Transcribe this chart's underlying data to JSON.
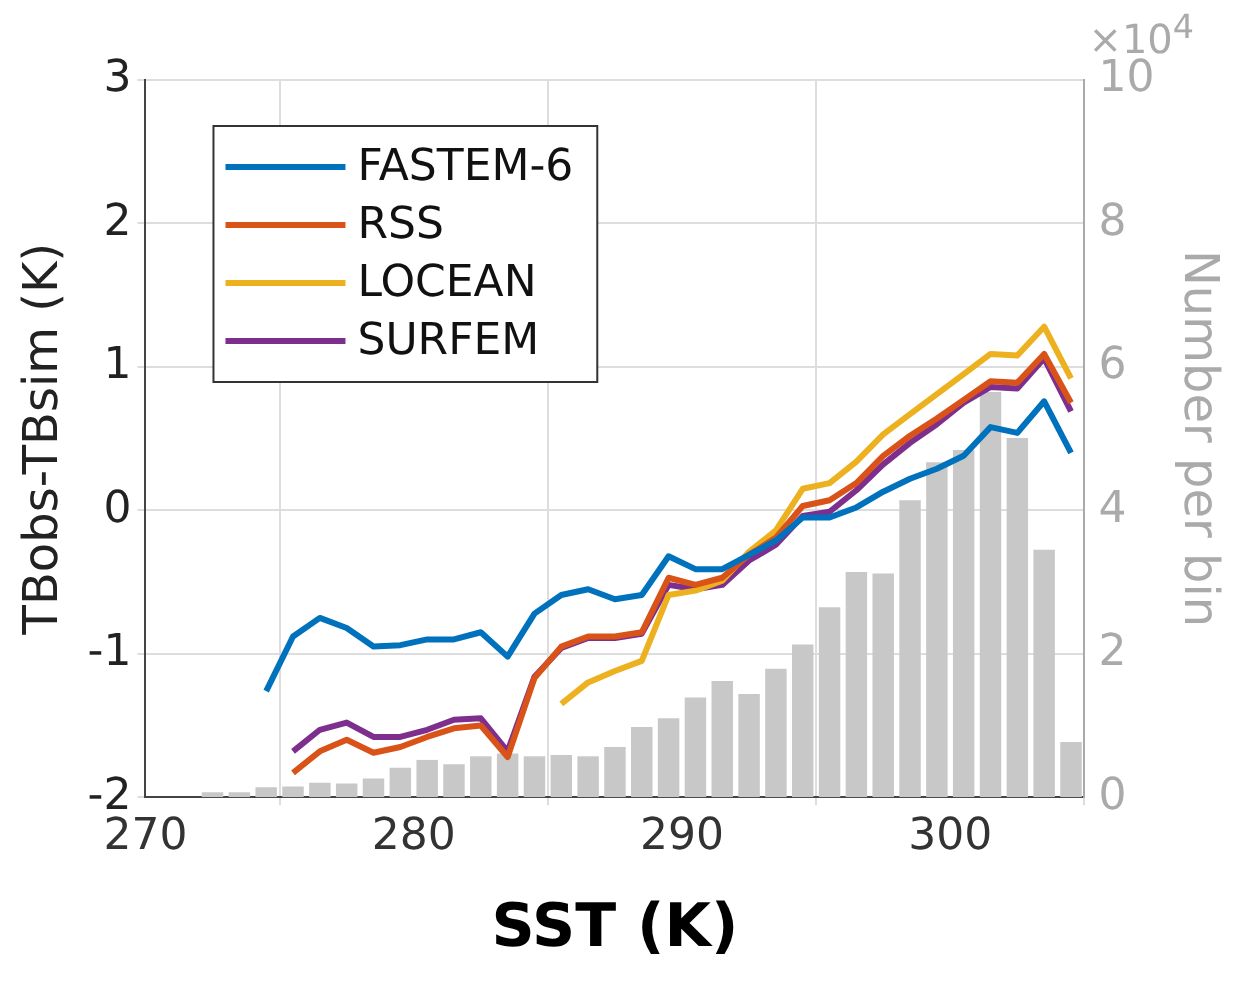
{
  "chart_data": {
    "type": "line",
    "xlabel": "SST (K)",
    "ylabel": "TBobs-TBsim (K)",
    "y2label": "Number per bin",
    "annotations": [
      "×10$^{4}$"
    ],
    "xlim": [
      270,
      305
    ],
    "xticks": [
      270,
      280,
      290,
      300
    ],
    "ylim": [
      -2,
      3
    ],
    "yticks": [
      -2,
      -1,
      0,
      1,
      2,
      3
    ],
    "y2lim": [
      0,
      10
    ],
    "y2ticks": [
      0,
      2,
      4,
      6,
      8,
      10
    ],
    "grid": true,
    "legend": "top left",
    "series": [
      {
        "type": "bar",
        "axis": "y2",
        "color": "#c8c8c8",
        "x": [
          272.5,
          273.5,
          274.5,
          275.5,
          276.5,
          277.5,
          278.5,
          279.5,
          280.5,
          281.5,
          282.5,
          283.5,
          284.5,
          285.5,
          286.5,
          287.5,
          288.5,
          289.5,
          290.5,
          291.5,
          292.5,
          293.5,
          294.5,
          295.5,
          296.5,
          297.5,
          298.5,
          299.5,
          300.5,
          301.5,
          302.5,
          303.5,
          304.5
        ],
        "values": [
          0.07,
          0.07,
          0.14,
          0.15,
          0.2,
          0.19,
          0.26,
          0.41,
          0.52,
          0.46,
          0.57,
          0.61,
          0.57,
          0.59,
          0.57,
          0.7,
          0.98,
          1.1,
          1.39,
          1.62,
          1.44,
          1.79,
          2.13,
          2.65,
          3.14,
          3.12,
          4.14,
          4.67,
          4.84,
          5.65,
          5.01,
          3.45,
          0.77
        ]
      },
      {
        "name": "FASTEM-6",
        "color": "#0072bd",
        "x": [
          274.5,
          275.5,
          276.5,
          277.5,
          278.5,
          279.5,
          280.5,
          281.5,
          282.5,
          283.5,
          284.5,
          285.5,
          286.5,
          287.5,
          288.5,
          289.5,
          290.5,
          291.5,
          292.5,
          293.5,
          294.5,
          295.5,
          296.5,
          297.5,
          298.5,
          299.5,
          300.5,
          301.5,
          302.5,
          303.5,
          304.5
        ],
        "values": [
          -1.26,
          -0.88,
          -0.75,
          -0.82,
          -0.95,
          -0.94,
          -0.9,
          -0.9,
          -0.85,
          -1.02,
          -0.72,
          -0.59,
          -0.55,
          -0.62,
          -0.59,
          -0.32,
          -0.41,
          -0.41,
          -0.31,
          -0.21,
          -0.05,
          -0.05,
          0.02,
          0.13,
          0.22,
          0.29,
          0.38,
          0.58,
          0.54,
          0.76,
          0.4
        ]
      },
      {
        "name": "RSS",
        "color": "#d95319",
        "x": [
          275.5,
          276.5,
          277.5,
          278.5,
          279.5,
          280.5,
          281.5,
          282.5,
          283.5,
          284.5,
          285.5,
          286.5,
          287.5,
          288.5,
          289.5,
          290.5,
          291.5,
          292.5,
          293.5,
          294.5,
          295.5,
          296.5,
          297.5,
          298.5,
          299.5,
          300.5,
          301.5,
          302.5,
          303.5,
          304.5
        ],
        "values": [
          -1.83,
          -1.68,
          -1.6,
          -1.69,
          -1.65,
          -1.58,
          -1.52,
          -1.5,
          -1.72,
          -1.17,
          -0.95,
          -0.88,
          -0.88,
          -0.85,
          -0.47,
          -0.52,
          -0.47,
          -0.31,
          -0.19,
          0.03,
          0.07,
          0.19,
          0.38,
          0.52,
          0.64,
          0.77,
          0.9,
          0.89,
          1.09,
          0.75
        ]
      },
      {
        "name": "LOCEAN",
        "color": "#edb120",
        "x": [
          285.5,
          286.5,
          287.5,
          288.5,
          289.5,
          290.5,
          291.5,
          292.5,
          293.5,
          294.5,
          295.5,
          296.5,
          297.5,
          298.5,
          299.5,
          300.5,
          301.5,
          302.5,
          303.5,
          304.5
        ],
        "values": [
          -1.35,
          -1.2,
          -1.12,
          -1.05,
          -0.59,
          -0.56,
          -0.49,
          -0.29,
          -0.14,
          0.15,
          0.19,
          0.34,
          0.53,
          0.67,
          0.81,
          0.95,
          1.09,
          1.08,
          1.28,
          0.92
        ]
      },
      {
        "name": "SURFEM",
        "color": "#7e2f8e",
        "x": [
          275.5,
          276.5,
          277.5,
          278.5,
          279.5,
          280.5,
          281.5,
          282.5,
          283.5,
          284.5,
          285.5,
          286.5,
          287.5,
          288.5,
          289.5,
          290.5,
          291.5,
          292.5,
          293.5,
          294.5,
          295.5,
          296.5,
          297.5,
          298.5,
          299.5,
          300.5,
          301.5,
          302.5,
          303.5,
          304.5
        ],
        "values": [
          -1.68,
          -1.53,
          -1.48,
          -1.58,
          -1.58,
          -1.53,
          -1.46,
          -1.45,
          -1.68,
          -1.16,
          -0.96,
          -0.89,
          -0.89,
          -0.86,
          -0.52,
          -0.55,
          -0.52,
          -0.35,
          -0.24,
          -0.04,
          -0.01,
          0.14,
          0.32,
          0.47,
          0.6,
          0.75,
          0.86,
          0.85,
          1.06,
          0.69
        ]
      }
    ]
  }
}
